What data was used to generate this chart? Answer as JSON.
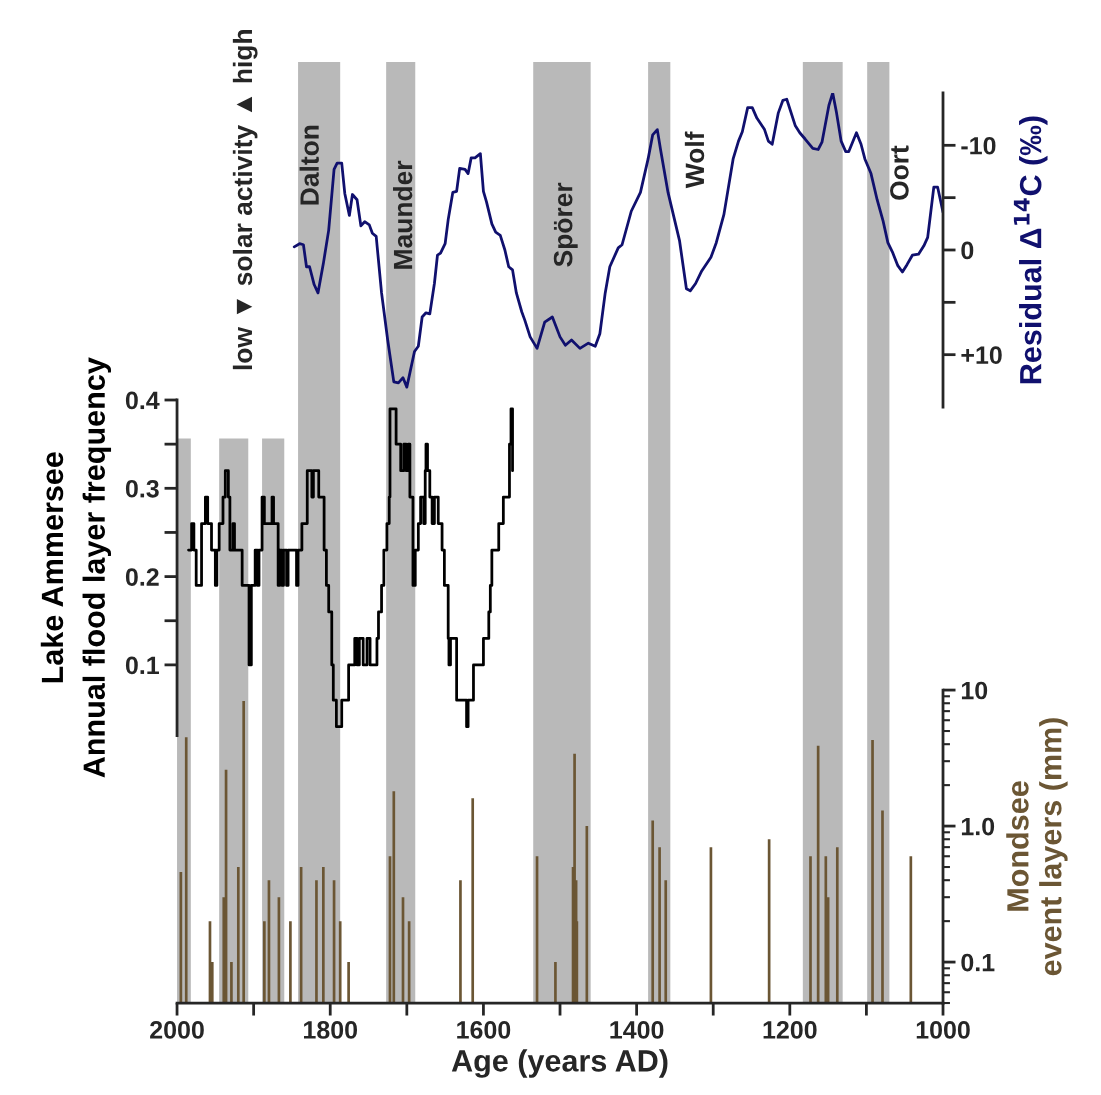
{
  "chart_data": [
    {
      "type": "line",
      "xlim": [
        2000,
        1000
      ],
      "y2lim": [
        15,
        -15
      ],
      "y2ticks": [
        -10,
        {
          "value": -5,
          "label": null
        },
        0,
        {
          "value": 5,
          "label": null
        },
        {
          "value": 10,
          "label": "+10"
        }
      ],
      "y2label": "Residual Δ$^{14}$C (‰)",
      "tick_labels": "y",
      "series": [
        {
          "color": "#10106e",
          "axis": "y2",
          "x": [
            1847,
            1840,
            1835,
            1831,
            1827,
            1821,
            1816,
            1809,
            1802,
            1795,
            1791,
            1785,
            1781,
            1775,
            1771,
            1765,
            1760,
            1755,
            1749,
            1745,
            1740,
            1733,
            1725,
            1717,
            1711,
            1705,
            1700,
            1690,
            1685,
            1680,
            1675,
            1670,
            1664,
            1660,
            1656,
            1650,
            1646,
            1640,
            1635,
            1631,
            1624,
            1620,
            1616,
            1611,
            1604,
            1600,
            1596,
            1589,
            1584,
            1578,
            1572,
            1567,
            1562,
            1557,
            1550,
            1546,
            1539,
            1530,
            1520,
            1510,
            1500,
            1493,
            1485,
            1474,
            1463,
            1454,
            1448,
            1441,
            1435,
            1424,
            1419,
            1407,
            1395,
            1385,
            1379,
            1373,
            1369,
            1359,
            1344,
            1335,
            1330,
            1323,
            1315,
            1303,
            1296,
            1286,
            1274,
            1267,
            1262,
            1255,
            1249,
            1243,
            1233,
            1228,
            1223,
            1215,
            1209,
            1204,
            1193,
            1187,
            1180,
            1170,
            1163,
            1158,
            1149,
            1144,
            1139,
            1133,
            1127,
            1123,
            1113,
            1107,
            1102,
            1094,
            1086,
            1078,
            1072,
            1066,
            1059,
            1053,
            1047,
            1040,
            1032,
            1025,
            1020,
            1012,
            1007,
            1000
          ],
          "values": [
            -0.3,
            -0.6,
            -0.5,
            1.6,
            1.6,
            3.3,
            4.1,
            1.3,
            -1.9,
            -7.7,
            -8.3,
            -8.3,
            -5.4,
            -3.3,
            -5.3,
            -4.8,
            -2.3,
            -2.7,
            -2.4,
            -1.6,
            -1.3,
            4.1,
            8.6,
            12.6,
            12.7,
            12.2,
            13.1,
            9.7,
            9.2,
            6.4,
            6.0,
            6.1,
            3.2,
            0.5,
            0.3,
            -0.6,
            -2.9,
            -5.5,
            -5.6,
            -7.8,
            -7.7,
            -7.3,
            -8.8,
            -8.8,
            -9.2,
            -5.6,
            -4.6,
            -2.5,
            -1.7,
            -1.4,
            0.0,
            1.6,
            1.9,
            4.1,
            5.9,
            6.7,
            8.3,
            9.4,
            6.9,
            6.4,
            8.3,
            9.1,
            8.6,
            9.4,
            8.9,
            9.2,
            8.0,
            4.1,
            1.6,
            -0.2,
            -0.5,
            -3.7,
            -5.5,
            -8.7,
            -11.0,
            -11.5,
            -9.7,
            -5.5,
            -0.9,
            3.7,
            3.9,
            3.2,
            2.0,
            0.7,
            -0.7,
            -3.4,
            -8.7,
            -10.4,
            -11.3,
            -13.6,
            -13.6,
            -12.6,
            -11.5,
            -10.4,
            -10.1,
            -13.1,
            -14.3,
            -14.4,
            -11.9,
            -11.2,
            -10.6,
            -9.7,
            -9.6,
            -10.3,
            -13.8,
            -15.0,
            -13.1,
            -10.4,
            -9.4,
            -9.4,
            -11.2,
            -10.1,
            -8.7,
            -7.3,
            -4.8,
            -2.7,
            -0.7,
            0.2,
            1.5,
            2.1,
            1.4,
            0.5,
            0.4,
            -0.4,
            -1.2,
            -6.0,
            -6.0,
            -3.6
          ]
        }
      ],
      "bands": [
        {
          "axis": "x",
          "from": 1842,
          "to": 1787,
          "color": "#b9b9b9"
        },
        {
          "axis": "x",
          "from": 1727,
          "to": 1689,
          "color": "#b9b9b9"
        },
        {
          "axis": "x",
          "from": 1535,
          "to": 1460,
          "color": "#b9b9b9"
        },
        {
          "axis": "x",
          "from": 1385,
          "to": 1356,
          "color": "#b9b9b9"
        },
        {
          "axis": "x",
          "from": 1183,
          "to": 1131,
          "color": "#b9b9b9"
        },
        {
          "axis": "x",
          "from": 1099,
          "to": 1070,
          "color": "#b9b9b9"
        }
      ],
      "annotations": [
        "low ▼ solar activity ▲ high",
        "Dalton",
        "Maunder",
        "Spörer",
        "Wolf",
        "Oort"
      ]
    },
    {
      "type": "step",
      "xlim": [
        2000,
        1000
      ],
      "ylim": [
        0.02,
        0.4
      ],
      "yticks": [
        0.1,
        {
          "value": 0.15,
          "label": null
        },
        0.2,
        {
          "value": 0.25,
          "label": null
        },
        0.3,
        {
          "value": 0.35,
          "label": null
        },
        0.4
      ],
      "ylabel": "Lake Ammersee\nAnnual flood layer frequency",
      "tick_labels": "y",
      "series": [
        {
          "color": "#000000",
          "x": [
            1985,
            1981,
            1978,
            1975,
            1971,
            1968,
            1966,
            1963,
            1960,
            1957,
            1955,
            1953,
            1950,
            1948,
            1945,
            1940,
            1937,
            1934,
            1933,
            1931,
            1927,
            1925,
            1916,
            1915,
            1909,
            1906,
            1903,
            1898,
            1895,
            1893,
            1889,
            1886,
            1879,
            1876,
            1874,
            1870,
            1868,
            1866,
            1863,
            1861,
            1857,
            1855,
            1846,
            1844,
            1842,
            1837,
            1833,
            1830,
            1826,
            1824,
            1822,
            1818,
            1815,
            1810,
            1808,
            1805,
            1802,
            1798,
            1796,
            1792,
            1787,
            1785,
            1781,
            1776,
            1771,
            1768,
            1765,
            1762,
            1757,
            1752,
            1748,
            1742,
            1739,
            1737,
            1733,
            1730,
            1726,
            1723,
            1722,
            1717,
            1714,
            1710,
            1708,
            1704,
            1701,
            1698,
            1696,
            1692,
            1689,
            1687,
            1685,
            1682,
            1678,
            1676,
            1675,
            1673,
            1670,
            1667,
            1664,
            1661,
            1659,
            1654,
            1651,
            1646,
            1645,
            1643,
            1637,
            1635,
            1626,
            1622,
            1620,
            1615,
            1613,
            1602,
            1600,
            1593,
            1591,
            1589,
            1585,
            1580,
            1576,
            1574,
            1570,
            1566,
            1564,
            1562
          ],
          "values": [
            0.23,
            0.26,
            0.23,
            0.19,
            0.19,
            0.26,
            0.26,
            0.29,
            0.26,
            0.26,
            0.23,
            0.23,
            0.19,
            0.23,
            0.26,
            0.29,
            0.32,
            0.32,
            0.29,
            0.23,
            0.26,
            0.23,
            0.23,
            0.19,
            0.19,
            0.1,
            0.19,
            0.23,
            0.19,
            0.23,
            0.29,
            0.26,
            0.26,
            0.29,
            0.26,
            0.26,
            0.19,
            0.23,
            0.19,
            0.23,
            0.19,
            0.23,
            0.23,
            0.19,
            0.23,
            0.26,
            0.26,
            0.32,
            0.32,
            0.29,
            0.32,
            0.32,
            0.29,
            0.29,
            0.23,
            0.19,
            0.16,
            0.1,
            0.06,
            0.03,
            0.03,
            0.06,
            0.06,
            0.1,
            0.1,
            0.13,
            0.1,
            0.13,
            0.1,
            0.13,
            0.1,
            0.1,
            0.13,
            0.16,
            0.19,
            0.23,
            0.26,
            0.29,
            0.39,
            0.39,
            0.35,
            0.35,
            0.32,
            0.35,
            0.32,
            0.35,
            0.29,
            0.19,
            0.23,
            0.23,
            0.26,
            0.29,
            0.26,
            0.32,
            0.35,
            0.32,
            0.29,
            0.26,
            0.29,
            0.29,
            0.26,
            0.23,
            0.19,
            0.13,
            0.1,
            0.13,
            0.13,
            0.06,
            0.06,
            0.03,
            0.06,
            0.06,
            0.1,
            0.1,
            0.13,
            0.16,
            0.19,
            0.23,
            0.23,
            0.26,
            0.26,
            0.29,
            0.29,
            0.35,
            0.39,
            0.32
          ]
        }
      ],
      "bands": [
        {
          "axis": "x",
          "from": 2000,
          "to": 1982,
          "color": "#b9b9b9"
        },
        {
          "axis": "x",
          "from": 1945,
          "to": 1907,
          "color": "#b9b9b9"
        },
        {
          "axis": "x",
          "from": 1889,
          "to": 1860,
          "color": "#b9b9b9"
        }
      ]
    },
    {
      "type": "bar",
      "xlim": [
        2000,
        1000
      ],
      "xticks": [
        2000,
        {
          "value": 1900,
          "label": null
        },
        1800,
        {
          "value": 1700,
          "label": null
        },
        1600,
        {
          "value": 1500,
          "label": null
        },
        1400,
        {
          "value": 1300,
          "label": null
        },
        1200,
        {
          "value": 1100,
          "label": null
        },
        1000
      ],
      "xlabel": "Age (years AD)",
      "y2lim": [
        0.05,
        10
      ],
      "y2ticks": [
        0.1,
        {
          "value": 1,
          "label": "1.0"
        },
        10
      ],
      "log": "y2",
      "y2label": "Mondsee\nevent layers (mm)",
      "series": [
        {
          "color": "#6b5634",
          "axis": "y2",
          "x": [
            1995,
            1988,
            1957,
            1954,
            1939,
            1936,
            1929,
            1920,
            1913,
            1886,
            1880,
            1867,
            1852,
            1838,
            1818,
            1809,
            1795,
            1787,
            1776,
            1722,
            1717,
            1705,
            1697,
            1630,
            1614,
            1530,
            1506,
            1483,
            1481,
            1479,
            1478,
            1465,
            1379,
            1370,
            1362,
            1303,
            1227,
            1173,
            1163,
            1153,
            1150,
            1138,
            1092,
            1079,
            1042
          ],
          "values": [
            0.46,
            4.5,
            0.2,
            0.1,
            0.3,
            2.6,
            0.1,
            0.5,
            8.3,
            0.2,
            0.4,
            0.3,
            0.2,
            0.5,
            0.4,
            0.5,
            0.4,
            0.2,
            0.1,
            0.6,
            1.8,
            0.3,
            0.2,
            0.4,
            1.6,
            0.6,
            0.1,
            0.5,
            3.4,
            0.4,
            0.2,
            1.0,
            1.1,
            0.7,
            0.4,
            0.7,
            0.8,
            0.6,
            3.9,
            0.6,
            0.3,
            0.7,
            4.3,
            1.3,
            0.6
          ]
        }
      ]
    }
  ]
}
